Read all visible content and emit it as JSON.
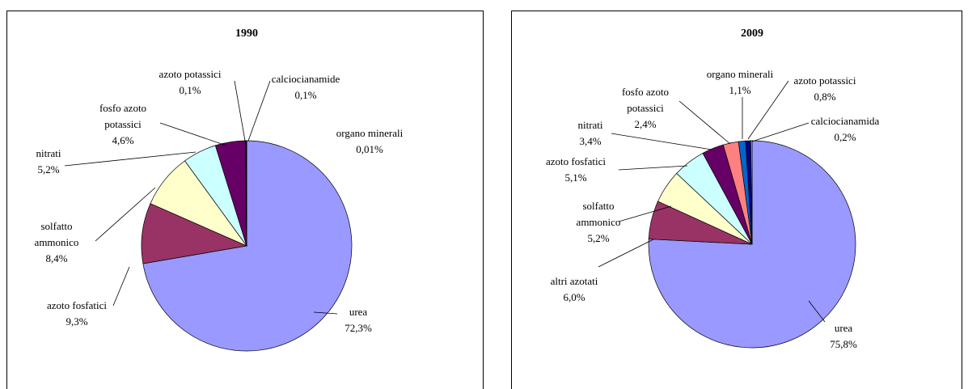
{
  "chart_data": [
    {
      "type": "pie",
      "title": "1990",
      "categories": [
        "urea",
        "azoto fosfatici",
        "solfatto ammonico",
        "nitrati",
        "fosfo azoto potassici",
        "azoto potassici",
        "calciocianamide",
        "organo minerali"
      ],
      "values": [
        72.3,
        9.3,
        8.4,
        5.2,
        4.6,
        0.1,
        0.1,
        0.01
      ],
      "value_labels": [
        "72,3%",
        "9,3%",
        "8,4%",
        "5,2%",
        "4,6%",
        "0,1%",
        "0,1%",
        "0,01%"
      ],
      "colors": [
        "#9999ff",
        "#993366",
        "#ffffcc",
        "#ccffff",
        "#660066",
        "#ff8080",
        "#0066cc",
        "#ccccff"
      ]
    },
    {
      "type": "pie",
      "title": "2009",
      "categories": [
        "urea",
        "altri azotati",
        "solfatto ammonico",
        "azoto fosfatici",
        "nitrati",
        "fosfo azoto potassici",
        "organo minerali",
        "azoto potassici",
        "calciocianamida"
      ],
      "values": [
        75.8,
        6.0,
        5.2,
        5.1,
        3.4,
        2.4,
        1.1,
        0.8,
        0.2
      ],
      "value_labels": [
        "75,8%",
        "6,0%",
        "5,2%",
        "5,1%",
        "3,4%",
        "2,4%",
        "1,1%",
        "0,8%",
        "0,2%"
      ],
      "colors": [
        "#9999ff",
        "#993366",
        "#ffffcc",
        "#ccffff",
        "#660066",
        "#ff8080",
        "#0066cc",
        "#000080",
        "#ccccff"
      ]
    }
  ]
}
